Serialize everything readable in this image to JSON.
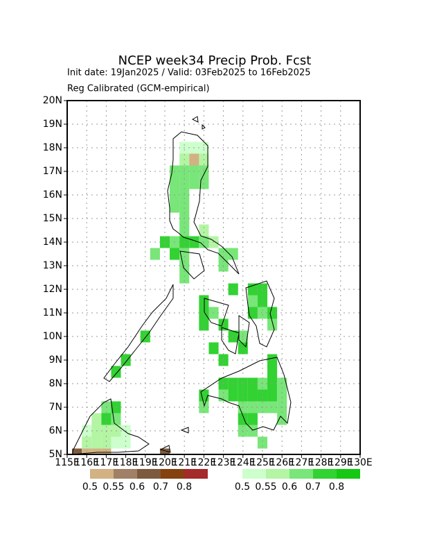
{
  "chart_data": {
    "type": "map",
    "title": "NCEP week34 Precip Prob. Fcst",
    "subtitle": [
      "Init date: 19Jan2025 / Valid: 03Feb2025 to 16Feb2025",
      "Reg Calibrated (GCM-empirical)"
    ],
    "xlim": [
      115,
      130
    ],
    "ylim": [
      5,
      20
    ],
    "xticks": [
      {
        "value": 115,
        "label": "115E"
      },
      {
        "value": 116,
        "label": "116E"
      },
      {
        "value": 117,
        "label": "117E"
      },
      {
        "value": 118,
        "label": "118E"
      },
      {
        "value": 119,
        "label": "119E"
      },
      {
        "value": 120,
        "label": "120E"
      },
      {
        "value": 121,
        "label": "121E"
      },
      {
        "value": 122,
        "label": "122E"
      },
      {
        "value": 123,
        "label": "123E"
      },
      {
        "value": 124,
        "label": "124E"
      },
      {
        "value": 125,
        "label": "125E"
      },
      {
        "value": 126,
        "label": "126E"
      },
      {
        "value": 127,
        "label": "127E"
      },
      {
        "value": 128,
        "label": "128E"
      },
      {
        "value": 129,
        "label": "129E"
      },
      {
        "value": 130,
        "label": "130E"
      }
    ],
    "yticks": [
      {
        "value": 5,
        "label": "5N"
      },
      {
        "value": 6,
        "label": "6N"
      },
      {
        "value": 7,
        "label": "7N"
      },
      {
        "value": 8,
        "label": "8N"
      },
      {
        "value": 9,
        "label": "9N"
      },
      {
        "value": 10,
        "label": "10N"
      },
      {
        "value": 11,
        "label": "11N"
      },
      {
        "value": 12,
        "label": "12N"
      },
      {
        "value": 13,
        "label": "13N"
      },
      {
        "value": 14,
        "label": "14N"
      },
      {
        "value": 15,
        "label": "15N"
      },
      {
        "value": 16,
        "label": "16N"
      },
      {
        "value": 17,
        "label": "17N"
      },
      {
        "value": 18,
        "label": "18N"
      },
      {
        "value": 19,
        "label": "19N"
      },
      {
        "value": 20,
        "label": "20N"
      }
    ],
    "grid": true,
    "below_normal_legend": {
      "levels": [
        0.5,
        0.55,
        0.6,
        0.7,
        0.8
      ],
      "colors": [
        "#d2b183",
        "#a08066",
        "#7d5a3e",
        "#85420f",
        "#a52a2a"
      ]
    },
    "above_normal_legend": {
      "levels": [
        0.5,
        0.55,
        0.6,
        0.7,
        0.8
      ],
      "colors": [
        "#ccffcc",
        "#b4f5a4",
        "#78e678",
        "#32d232",
        "#14c814"
      ]
    },
    "below_normal_cells": [
      {
        "lon": 121.25,
        "lat": 17.25,
        "value": 0.5
      },
      {
        "lon": 115.25,
        "lat": 4.75,
        "value": 0.6
      },
      {
        "lon": 115.75,
        "lat": 4.75,
        "value": 0.5
      },
      {
        "lon": 116.25,
        "lat": 4.75,
        "value": 0.5
      },
      {
        "lon": 116.75,
        "lat": 4.75,
        "value": 0.5
      },
      {
        "lon": 119.75,
        "lat": 4.75,
        "value": 0.6
      }
    ],
    "above_normal_cells": [
      {
        "lon": 120.75,
        "lat": 17.75,
        "value": 0.5
      },
      {
        "lon": 121.25,
        "lat": 17.75,
        "value": 0.5
      },
      {
        "lon": 121.75,
        "lat": 17.75,
        "value": 0.5
      },
      {
        "lon": 120.75,
        "lat": 17.25,
        "value": 0.55
      },
      {
        "lon": 121.75,
        "lat": 17.25,
        "value": 0.55
      },
      {
        "lon": 120.25,
        "lat": 16.75,
        "value": 0.6
      },
      {
        "lon": 120.75,
        "lat": 16.75,
        "value": 0.6
      },
      {
        "lon": 121.25,
        "lat": 16.75,
        "value": 0.6
      },
      {
        "lon": 121.75,
        "lat": 16.75,
        "value": 0.6
      },
      {
        "lon": 120.25,
        "lat": 16.25,
        "value": 0.6
      },
      {
        "lon": 120.75,
        "lat": 16.25,
        "value": 0.6
      },
      {
        "lon": 121.25,
        "lat": 16.25,
        "value": 0.6
      },
      {
        "lon": 121.75,
        "lat": 16.25,
        "value": 0.6
      },
      {
        "lon": 120.25,
        "lat": 15.75,
        "value": 0.6
      },
      {
        "lon": 120.75,
        "lat": 15.75,
        "value": 0.6
      },
      {
        "lon": 120.25,
        "lat": 15.25,
        "value": 0.6
      },
      {
        "lon": 120.75,
        "lat": 15.25,
        "value": 0.6
      },
      {
        "lon": 120.75,
        "lat": 14.75,
        "value": 0.6
      },
      {
        "lon": 120.75,
        "lat": 14.25,
        "value": 0.6
      },
      {
        "lon": 121.75,
        "lat": 14.25,
        "value": 0.55
      },
      {
        "lon": 119.75,
        "lat": 13.75,
        "value": 0.7
      },
      {
        "lon": 120.25,
        "lat": 13.75,
        "value": 0.6
      },
      {
        "lon": 120.75,
        "lat": 13.75,
        "value": 0.7
      },
      {
        "lon": 121.25,
        "lat": 13.75,
        "value": 0.7
      },
      {
        "lon": 121.75,
        "lat": 13.75,
        "value": 0.6
      },
      {
        "lon": 122.25,
        "lat": 13.75,
        "value": 0.55
      },
      {
        "lon": 119.25,
        "lat": 13.25,
        "value": 0.6
      },
      {
        "lon": 120.25,
        "lat": 13.25,
        "value": 0.7
      },
      {
        "lon": 120.75,
        "lat": 13.25,
        "value": 0.6
      },
      {
        "lon": 122.75,
        "lat": 13.25,
        "value": 0.6
      },
      {
        "lon": 123.25,
        "lat": 13.25,
        "value": 0.6
      },
      {
        "lon": 120.75,
        "lat": 12.75,
        "value": 0.6
      },
      {
        "lon": 122.75,
        "lat": 12.75,
        "value": 0.6
      },
      {
        "lon": 120.75,
        "lat": 12.25,
        "value": 0.6
      },
      {
        "lon": 123.25,
        "lat": 11.75,
        "value": 0.7
      },
      {
        "lon": 124.25,
        "lat": 11.75,
        "value": 0.7
      },
      {
        "lon": 124.75,
        "lat": 11.75,
        "value": 0.7
      },
      {
        "lon": 121.75,
        "lat": 11.25,
        "value": 0.7
      },
      {
        "lon": 124.25,
        "lat": 11.25,
        "value": 0.6
      },
      {
        "lon": 124.75,
        "lat": 11.25,
        "value": 0.7
      },
      {
        "lon": 121.75,
        "lat": 10.75,
        "value": 0.7
      },
      {
        "lon": 122.25,
        "lat": 10.75,
        "value": 0.6
      },
      {
        "lon": 124.25,
        "lat": 10.75,
        "value": 0.7
      },
      {
        "lon": 124.75,
        "lat": 10.75,
        "value": 0.6
      },
      {
        "lon": 125.25,
        "lat": 10.75,
        "value": 0.7
      },
      {
        "lon": 121.75,
        "lat": 10.25,
        "value": 0.7
      },
      {
        "lon": 122.75,
        "lat": 10.25,
        "value": 0.7
      },
      {
        "lon": 125.25,
        "lat": 10.25,
        "value": 0.6
      },
      {
        "lon": 118.75,
        "lat": 9.75,
        "value": 0.7
      },
      {
        "lon": 123.25,
        "lat": 9.75,
        "value": 0.7
      },
      {
        "lon": 123.75,
        "lat": 9.75,
        "value": 0.6
      },
      {
        "lon": 122.25,
        "lat": 9.25,
        "value": 0.7
      },
      {
        "lon": 123.75,
        "lat": 9.25,
        "value": 0.7
      },
      {
        "lon": 117.75,
        "lat": 8.75,
        "value": 0.7
      },
      {
        "lon": 122.75,
        "lat": 8.75,
        "value": 0.7
      },
      {
        "lon": 125.25,
        "lat": 8.75,
        "value": 0.7
      },
      {
        "lon": 117.25,
        "lat": 8.25,
        "value": 0.7
      },
      {
        "lon": 125.25,
        "lat": 8.25,
        "value": 0.7
      },
      {
        "lon": 122.75,
        "lat": 7.75,
        "value": 0.7
      },
      {
        "lon": 123.25,
        "lat": 7.75,
        "value": 0.7
      },
      {
        "lon": 123.75,
        "lat": 7.75,
        "value": 0.7
      },
      {
        "lon": 124.25,
        "lat": 7.75,
        "value": 0.7
      },
      {
        "lon": 124.75,
        "lat": 7.75,
        "value": 0.6
      },
      {
        "lon": 125.25,
        "lat": 7.75,
        "value": 0.7
      },
      {
        "lon": 125.75,
        "lat": 7.75,
        "value": 0.6
      },
      {
        "lon": 121.75,
        "lat": 7.25,
        "value": 0.7
      },
      {
        "lon": 122.75,
        "lat": 7.25,
        "value": 0.6
      },
      {
        "lon": 123.25,
        "lat": 7.25,
        "value": 0.7
      },
      {
        "lon": 123.75,
        "lat": 7.25,
        "value": 0.7
      },
      {
        "lon": 124.25,
        "lat": 7.25,
        "value": 0.7
      },
      {
        "lon": 124.75,
        "lat": 7.25,
        "value": 0.7
      },
      {
        "lon": 125.25,
        "lat": 7.25,
        "value": 0.7
      },
      {
        "lon": 125.75,
        "lat": 7.25,
        "value": 0.6
      },
      {
        "lon": 121.75,
        "lat": 6.75,
        "value": 0.6
      },
      {
        "lon": 123.75,
        "lat": 6.75,
        "value": 0.6
      },
      {
        "lon": 124.25,
        "lat": 6.75,
        "value": 0.6
      },
      {
        "lon": 124.75,
        "lat": 6.75,
        "value": 0.6
      },
      {
        "lon": 125.25,
        "lat": 6.75,
        "value": 0.6
      },
      {
        "lon": 125.75,
        "lat": 6.75,
        "value": 0.6
      },
      {
        "lon": 123.75,
        "lat": 6.25,
        "value": 0.7
      },
      {
        "lon": 124.25,
        "lat": 6.25,
        "value": 0.7
      },
      {
        "lon": 125.75,
        "lat": 6.25,
        "value": 0.6
      },
      {
        "lon": 123.75,
        "lat": 5.75,
        "value": 0.6
      },
      {
        "lon": 124.25,
        "lat": 5.75,
        "value": 0.6
      },
      {
        "lon": 124.75,
        "lat": 5.25,
        "value": 0.6
      },
      {
        "lon": 116.75,
        "lat": 6.75,
        "value": 0.6
      },
      {
        "lon": 117.25,
        "lat": 6.75,
        "value": 0.7
      },
      {
        "lon": 116.25,
        "lat": 6.25,
        "value": 0.55
      },
      {
        "lon": 116.75,
        "lat": 6.25,
        "value": 0.7
      },
      {
        "lon": 117.25,
        "lat": 6.25,
        "value": 0.6
      },
      {
        "lon": 115.75,
        "lat": 5.75,
        "value": 0.5
      },
      {
        "lon": 116.25,
        "lat": 5.75,
        "value": 0.55
      },
      {
        "lon": 116.75,
        "lat": 5.75,
        "value": 0.55
      },
      {
        "lon": 117.25,
        "lat": 5.75,
        "value": 0.55
      },
      {
        "lon": 117.75,
        "lat": 5.75,
        "value": 0.5
      },
      {
        "lon": 115.75,
        "lat": 5.25,
        "value": 0.55
      },
      {
        "lon": 116.25,
        "lat": 5.25,
        "value": 0.55
      },
      {
        "lon": 116.75,
        "lat": 5.25,
        "value": 0.55
      },
      {
        "lon": 117.25,
        "lat": 5.25,
        "value": 0.5
      },
      {
        "lon": 117.75,
        "lat": 5.25,
        "value": 0.5
      }
    ]
  }
}
